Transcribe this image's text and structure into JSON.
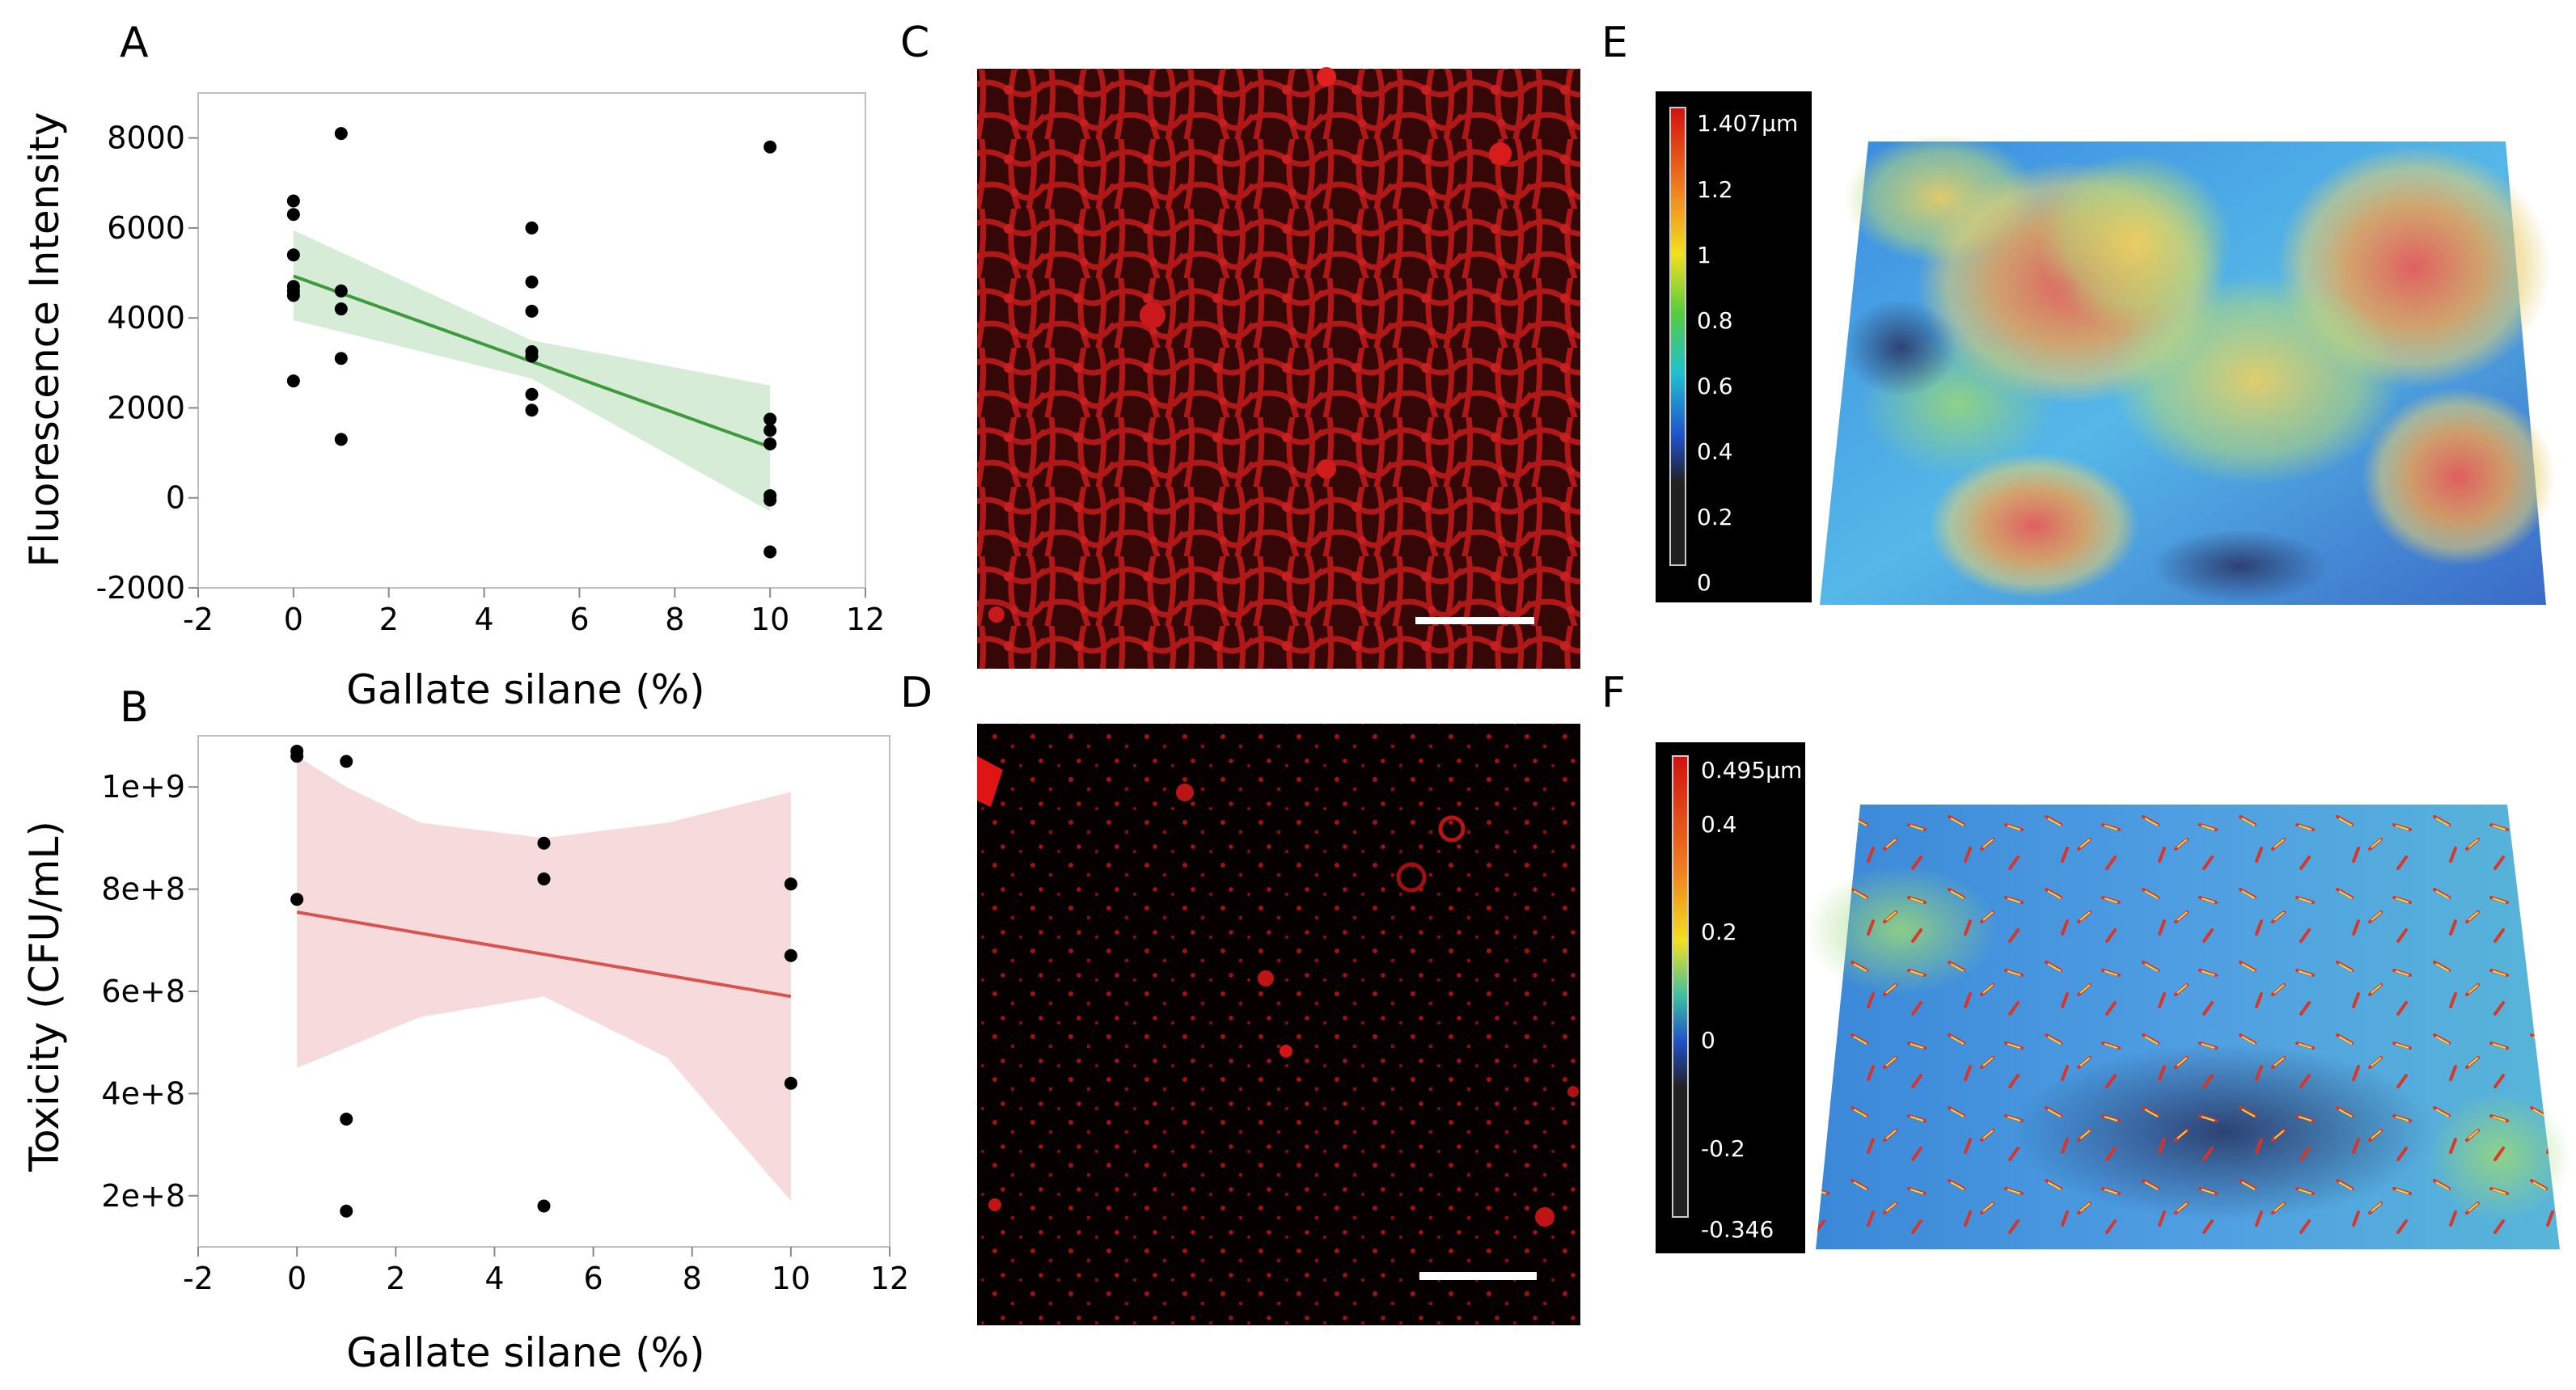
{
  "panel_labels": {
    "a": "A",
    "b": "B",
    "c": "C",
    "d": "D",
    "e": "E",
    "f": "F"
  },
  "colors": {
    "fit_green": "#3d9b3d",
    "band_green": "#cfe9cf",
    "fit_red": "#d9534f",
    "band_red": "#f5d3d6",
    "point": "#000000",
    "micro_red": "#e01414"
  },
  "chart_data": [
    {
      "id": "A",
      "type": "scatter",
      "title": "",
      "xlabel": "Gallate silane (%)",
      "ylabel": "Fluorescence Intensity",
      "xlim": [
        -2,
        12
      ],
      "ylim": [
        -2000,
        9000
      ],
      "xticks": [
        -2,
        0,
        2,
        4,
        6,
        8,
        10,
        12
      ],
      "xtick_labels": [
        "-2",
        "0",
        "2",
        "4",
        "6",
        "8",
        "10",
        "12"
      ],
      "yticks": [
        -2000,
        0,
        2000,
        4000,
        6000,
        8000
      ],
      "ytick_labels": [
        "-2000",
        "0",
        "2000",
        "4000",
        "6000",
        "8000"
      ],
      "points": {
        "x": [
          0,
          0,
          0,
          0,
          0,
          0,
          0,
          1,
          1,
          1,
          1,
          1,
          5,
          5,
          5,
          5,
          5,
          5,
          5,
          10,
          10,
          10,
          10,
          10,
          10,
          10
        ],
        "y": [
          6600,
          6300,
          5400,
          4700,
          4600,
          4500,
          2600,
          8100,
          4600,
          4200,
          3100,
          1300,
          6000,
          4800,
          4150,
          3250,
          3150,
          2300,
          1950,
          7800,
          1750,
          1500,
          1200,
          50,
          -50,
          -1200
        ]
      },
      "fit": {
        "x": [
          0,
          10
        ],
        "y": [
          4930,
          1130
        ]
      },
      "band": {
        "x": [
          0,
          5,
          10
        ],
        "upper": [
          5950,
          3500,
          2500
        ],
        "lower": [
          3950,
          2650,
          -300
        ]
      }
    },
    {
      "id": "B",
      "type": "scatter",
      "title": "",
      "xlabel": "Gallate silane (%)",
      "ylabel": "Toxicity (CFU/mL)",
      "xlim": [
        -2,
        12
      ],
      "ylim": [
        100000000,
        1100000000
      ],
      "xticks": [
        -2,
        0,
        2,
        4,
        6,
        8,
        10,
        12
      ],
      "xtick_labels": [
        "-2",
        "0",
        "2",
        "4",
        "6",
        "8",
        "10",
        "12"
      ],
      "yticks": [
        200000000,
        400000000,
        600000000,
        800000000,
        1000000000
      ],
      "ytick_labels": [
        "2e+8",
        "4e+8",
        "6e+8",
        "8e+8",
        "1e+9"
      ],
      "points": {
        "x": [
          0,
          0,
          0,
          1,
          1,
          1,
          5,
          5,
          5,
          10,
          10,
          10
        ],
        "y": [
          1070000000,
          1060000000,
          780000000,
          1050000000,
          350000000,
          170000000,
          890000000,
          820000000,
          180000000,
          810000000,
          670000000,
          420000000
        ]
      },
      "fit": {
        "x": [
          0,
          10
        ],
        "y": [
          755000000,
          590000000
        ]
      },
      "band": {
        "x": [
          0,
          1,
          2.5,
          5,
          7.5,
          10
        ],
        "upper": [
          1060000000,
          1000000000,
          930000000,
          900000000,
          930000000,
          990000000
        ],
        "lower": [
          450000000,
          490000000,
          550000000,
          590000000,
          470000000,
          190000000
        ]
      }
    }
  ],
  "colorbar_e": {
    "labels": [
      "1.407µm",
      "1.2",
      "1",
      "0.8",
      "0.6",
      "0.4",
      "0.2",
      "0"
    ]
  },
  "colorbar_f": {
    "labels": [
      "0.495µm",
      "0.4",
      "0.2",
      "0",
      "-0.2",
      "-0.346"
    ]
  }
}
